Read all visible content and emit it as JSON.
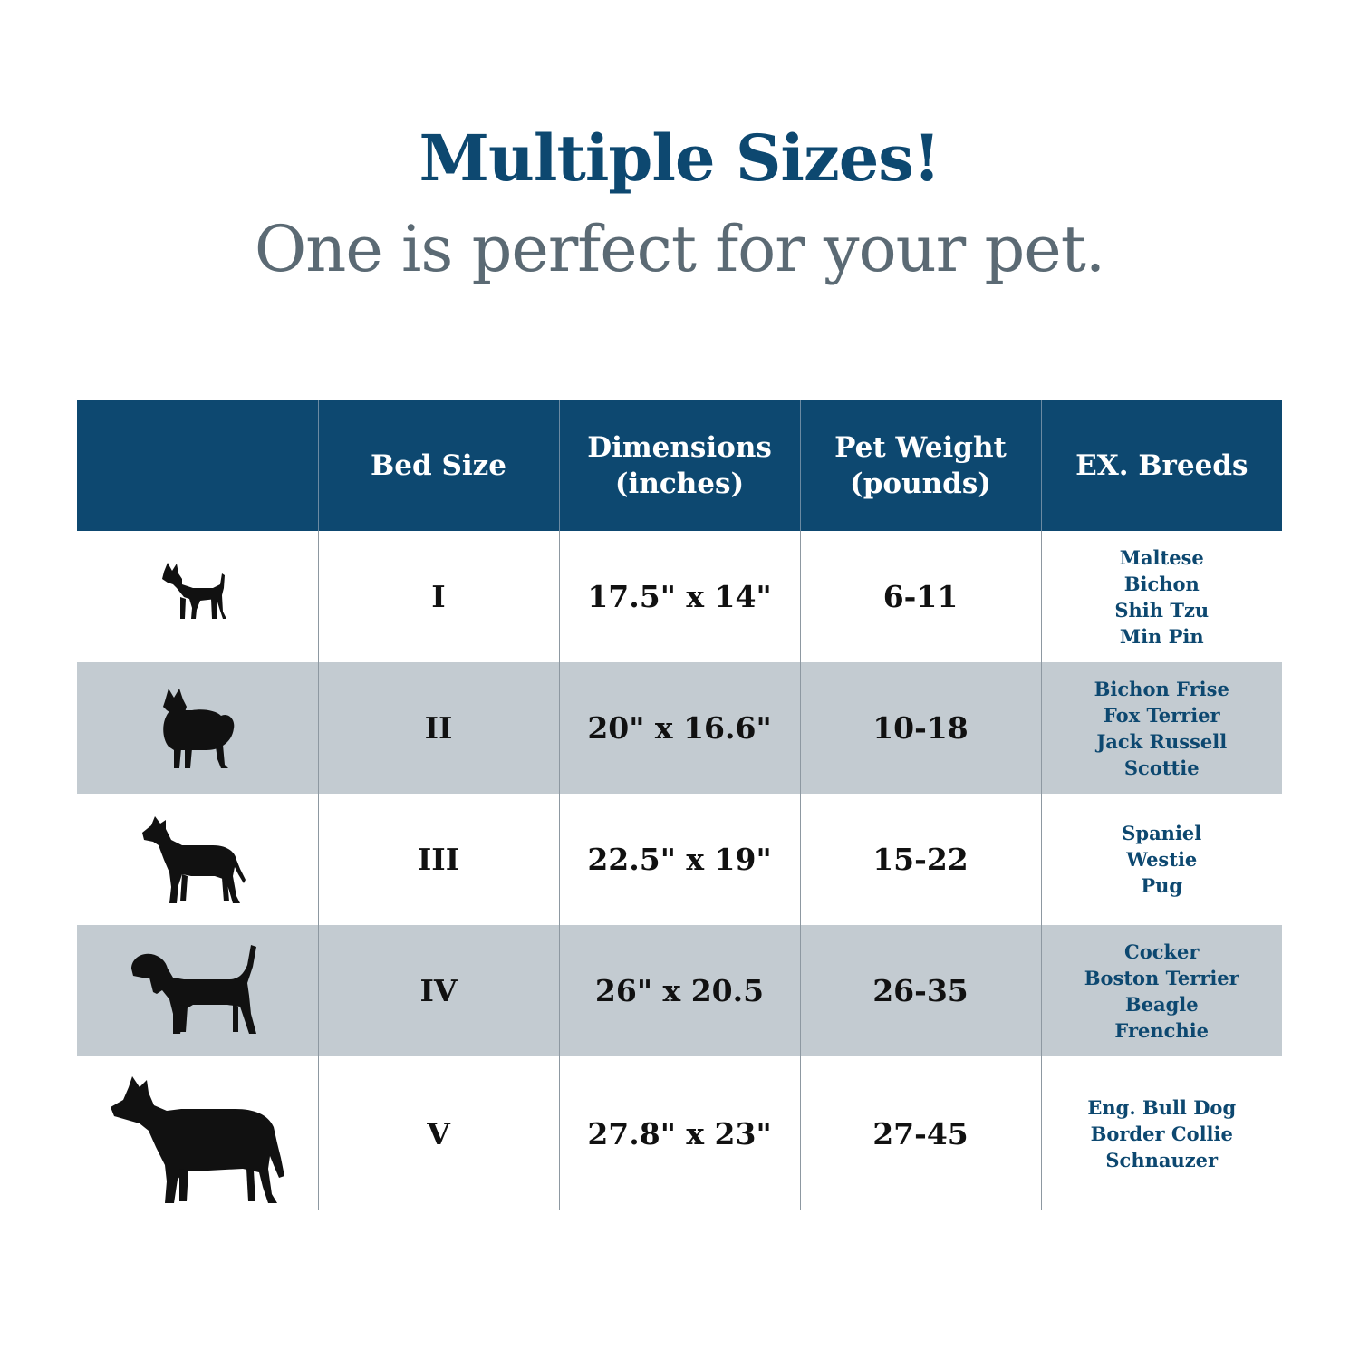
{
  "header": {
    "title": "Multiple Sizes!",
    "subtitle": "One is perfect for your pet."
  },
  "table": {
    "columns": [
      {
        "lines": [
          ""
        ]
      },
      {
        "lines": [
          "Bed Size"
        ]
      },
      {
        "lines": [
          "Dimensions",
          "(inches)"
        ]
      },
      {
        "lines": [
          "Pet Weight",
          "(pounds)"
        ]
      },
      {
        "lines": [
          "EX. Breeds"
        ]
      }
    ],
    "rows": [
      {
        "icon": "chihuahua-silhouette-icon",
        "bed_size": "I",
        "dimensions": "17.5\" x 14\"",
        "weight": "6-11",
        "breeds": [
          "Maltese",
          "Bichon",
          "Shih Tzu",
          "Min Pin"
        ]
      },
      {
        "icon": "pomeranian-silhouette-icon",
        "bed_size": "II",
        "dimensions": "20\" x 16.6\"",
        "weight": "10-18",
        "breeds": [
          "Bichon Frise",
          "Fox Terrier",
          "Jack Russell",
          "Scottie"
        ]
      },
      {
        "icon": "terrier-silhouette-icon",
        "bed_size": "III",
        "dimensions": "22.5\" x 19\"",
        "weight": "15-22",
        "breeds": [
          "Spaniel",
          "Westie",
          "Pug"
        ]
      },
      {
        "icon": "beagle-silhouette-icon",
        "bed_size": "IV",
        "dimensions": "26\" x 20.5",
        "weight": "26-35",
        "breeds": [
          "Cocker",
          "Boston Terrier",
          "Beagle",
          "Frenchie"
        ]
      },
      {
        "icon": "husky-silhouette-icon",
        "bed_size": "V",
        "dimensions": "27.8\" x 23\"",
        "weight": "27-45",
        "breeds": [
          "Eng. Bull Dog",
          "Border Collie",
          "Schnauzer"
        ]
      }
    ]
  },
  "colors": {
    "brand_navy": "#0d4870",
    "subtitle_gray": "#5b6a74",
    "row_shade": "#c3cbd1",
    "text_dark": "#111111"
  }
}
